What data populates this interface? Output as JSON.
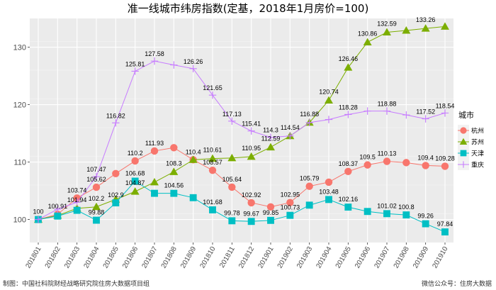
{
  "chart_data": {
    "type": "line",
    "title": "准一线城市纬房指数(定基，2018年1月房价=100)",
    "xlabel": "",
    "ylabel": "",
    "ylim": [
      96,
      135
    ],
    "yticks": [
      100,
      110,
      120,
      130
    ],
    "categories": [
      "201801",
      "201802",
      "201803",
      "201804",
      "201805",
      "201806",
      "201807",
      "201808",
      "201809",
      "201810",
      "201811",
      "201812",
      "201901",
      "201902",
      "201903",
      "201904",
      "201905",
      "201906",
      "201907",
      "201908",
      "201909",
      "201910"
    ],
    "legend_title": "城市",
    "legend_position": "right",
    "series": [
      {
        "name": "杭州",
        "marker": "circle",
        "color": "#F8766D",
        "values": [
          100,
          100.91,
          103.74,
          105.62,
          108.0,
          110.2,
          111.93,
          112.5,
          110.4,
          108.57,
          105.64,
          102.92,
          102.2,
          102.95,
          105.79,
          106.5,
          108.37,
          109.5,
          110.13,
          109.9,
          109.4,
          109.28
        ],
        "labels": [
          "100",
          "100.91",
          "103.74",
          "105.62",
          "",
          "110.2",
          "111.93",
          "",
          "110.4",
          "108.57",
          "105.64",
          "102.92",
          "",
          "102.95",
          "105.79",
          "",
          "108.37",
          "109.5",
          "110.13",
          "",
          "109.4",
          "109.28"
        ]
      },
      {
        "name": "苏州",
        "marker": "triangle",
        "color": "#7CAE00",
        "values": [
          100,
          100.7,
          101.94,
          102.2,
          103.5,
          104.87,
          106.5,
          108.3,
          110.4,
          110.61,
          110.7,
          110.95,
          112.59,
          114.54,
          116.88,
          120.74,
          126.46,
          130.86,
          132.59,
          132.9,
          133.26,
          133.6
        ],
        "labels": [
          "",
          "",
          "101.94",
          "102.2",
          "",
          "104.87",
          "",
          "108.3",
          "",
          "110.61",
          "",
          "110.95",
          "112.59",
          "114.54",
          "116.88",
          "120.74",
          "126.46",
          "130.86",
          "132.59",
          "",
          "133.26",
          ""
        ]
      },
      {
        "name": "天津",
        "marker": "square",
        "color": "#00BFC4",
        "values": [
          100,
          100.6,
          101.6,
          99.88,
          102.9,
          106.68,
          104.56,
          104.56,
          103.8,
          101.68,
          99.78,
          99.67,
          99.85,
          100.73,
          102.5,
          103.48,
          102.16,
          101.4,
          101.02,
          100.8,
          99.26,
          97.84
        ],
        "labels": [
          "",
          "",
          "",
          "99.88",
          "102.9",
          "106.68",
          "",
          "104.56",
          "",
          "101.68",
          "99.78",
          "99.67",
          "99.85",
          "100.73",
          "",
          "103.48",
          "102.16",
          "",
          "101.02",
          "100.8",
          "99.26",
          "97.84"
        ]
      },
      {
        "name": "重庆",
        "marker": "plus",
        "color": "#C77CFF",
        "values": [
          100,
          101.8,
          103.0,
          107.47,
          116.82,
          125.81,
          127.58,
          126.9,
          126.26,
          121.65,
          117.13,
          115.41,
          114.3,
          114.54,
          116.88,
          117.4,
          118.28,
          118.88,
          118.88,
          118.2,
          117.52,
          118.54
        ],
        "labels": [
          "",
          "",
          "",
          "107.47",
          "116.82",
          "125.81",
          "127.58",
          "",
          "126.26",
          "121.65",
          "117.13",
          "115.41",
          "114.3",
          "",
          "",
          "",
          "118.28",
          "",
          "118.88",
          "",
          "117.52",
          "118.54"
        ]
      }
    ]
  },
  "footer": {
    "left": "制图：中国社科院财经战略研究院住房大数据项目组",
    "right": "微信公众号：住房大数据"
  }
}
